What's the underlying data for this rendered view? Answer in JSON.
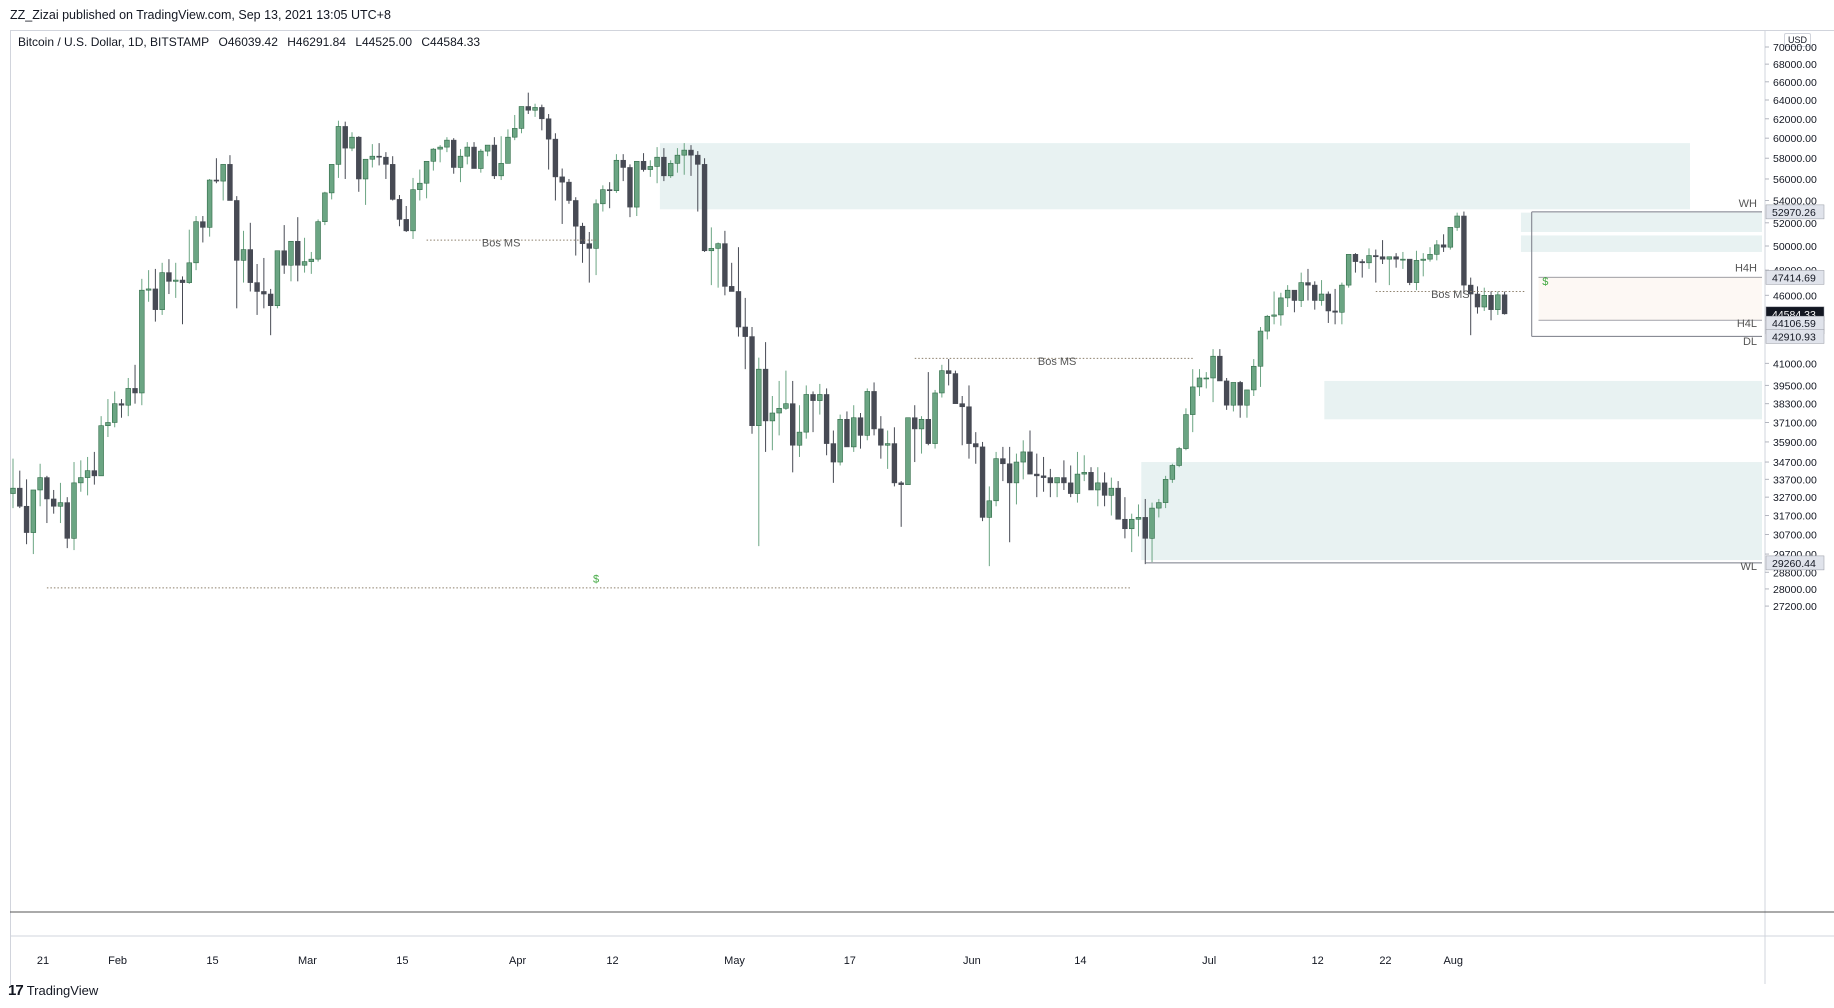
{
  "header": {
    "publisher": "ZZ_Zizai published on TradingView.com, Sep 13, 2021 13:05 UTC+8",
    "symbol": "Bitcoin / U.S. Dollar, 1D, BITSTAMP",
    "open": "O46039.42",
    "high": "H46291.84",
    "low": "L44525.00",
    "close": "C44584.33",
    "currency": "USD"
  },
  "footer": {
    "logo": "17",
    "brand": "TradingView"
  },
  "colors": {
    "up": "#6ba583",
    "down": "#474a54",
    "zone": "#e8f2f2",
    "dotted": "#8c7f6b"
  },
  "chart_data": {
    "type": "candlestick",
    "title": "",
    "y_scale": "log",
    "ylim": [
      26500,
      70500
    ],
    "x_ticks": [
      "21",
      "Feb",
      "15",
      "Mar",
      "15",
      "Apr",
      "12",
      "May",
      "17",
      "Jun",
      "14",
      "Jul",
      "12",
      "22",
      "Aug"
    ],
    "y_ticks": [
      "70000.00",
      "68000.00",
      "66000.00",
      "64000.00",
      "62000.00",
      "60000.00",
      "58000.00",
      "56000.00",
      "54000.00",
      "52000.00",
      "50000.00",
      "48000.00",
      "46000.00",
      "41000.00",
      "39500.00",
      "38300.00",
      "37100.00",
      "35900.00",
      "34700.00",
      "33700.00",
      "32700.00",
      "31700.00",
      "30700.00",
      "29700.00",
      "28800.00",
      "28000.00",
      "27200.00"
    ],
    "price_labels": [
      {
        "value": "52970.26",
        "style": "light"
      },
      {
        "value": "47414.69",
        "style": "light"
      },
      {
        "value": "44584.33",
        "style": "dark"
      },
      {
        "value": "18:54:49",
        "style": "dark"
      },
      {
        "value": "44106.59",
        "style": "light"
      },
      {
        "value": "42910.93",
        "style": "light"
      },
      {
        "value": "29260.44",
        "style": "light"
      }
    ],
    "annotations": [
      {
        "text": "Bos MS",
        "type": "label"
      },
      {
        "text": "Bos MS",
        "type": "label"
      },
      {
        "text": "Bos MS",
        "type": "label"
      },
      {
        "text": "$",
        "type": "liquidity"
      },
      {
        "text": "$",
        "type": "liquidity"
      },
      {
        "text": "WH",
        "type": "level"
      },
      {
        "text": "H4H",
        "type": "level"
      },
      {
        "text": "H4L",
        "type": "level"
      },
      {
        "text": "DL",
        "type": "level"
      },
      {
        "text": "WL",
        "type": "level"
      }
    ],
    "zones": [
      {
        "from": "2021-05-03",
        "to": "2021-09-13",
        "low": 53200,
        "high": 59500
      },
      {
        "from": "2021-08-09",
        "to": "2021-09-13",
        "low": 37300,
        "high": 39800
      },
      {
        "from": "2021-07-13",
        "to": "2021-09-13",
        "low": 29400,
        "high": 34700
      },
      {
        "from": "2021-09-07",
        "to": "2021-09-13",
        "low": 51200,
        "high": 52900
      },
      {
        "from": "2021-09-07",
        "to": "2021-09-13",
        "low": 49500,
        "high": 50900
      }
    ],
    "candles_ohlc": [
      [
        32900,
        34900,
        32100,
        33200
      ],
      [
        33200,
        34200,
        32100,
        32200
      ],
      [
        32200,
        33700,
        30200,
        30800
      ],
      [
        30800,
        33100,
        29700,
        33100
      ],
      [
        33100,
        34600,
        32200,
        33800
      ],
      [
        33800,
        33900,
        31300,
        32600
      ],
      [
        32600,
        33100,
        31800,
        32200
      ],
      [
        32200,
        33500,
        31300,
        32400
      ],
      [
        32400,
        32700,
        30000,
        30500
      ],
      [
        30500,
        34700,
        29900,
        33500
      ],
      [
        33500,
        34800,
        33000,
        33800
      ],
      [
        33800,
        35000,
        32800,
        34200
      ],
      [
        34200,
        35300,
        33400,
        33900
      ],
      [
        33900,
        37500,
        33900,
        36900
      ],
      [
        36900,
        38600,
        36200,
        37100
      ],
      [
        37100,
        39100,
        36800,
        38300
      ],
      [
        38300,
        38600,
        37400,
        38200
      ],
      [
        38200,
        40000,
        37500,
        39300
      ],
      [
        39300,
        40900,
        38300,
        39000
      ],
      [
        39000,
        47300,
        38200,
        46400
      ],
      [
        46400,
        48000,
        45500,
        46500
      ],
      [
        46500,
        48100,
        44000,
        44900
      ],
      [
        44900,
        48600,
        44500,
        47800
      ],
      [
        47800,
        48900,
        46100,
        47100
      ],
      [
        47100,
        48600,
        45800,
        47200
      ],
      [
        47200,
        47500,
        43800,
        47000
      ],
      [
        47000,
        51400,
        46900,
        48600
      ],
      [
        48600,
        52600,
        48000,
        52100
      ],
      [
        52100,
        52600,
        50300,
        51600
      ],
      [
        51600,
        56000,
        50800,
        55900
      ],
      [
        55900,
        58000,
        55600,
        55800
      ],
      [
        55800,
        57400,
        54000,
        57400
      ],
      [
        57400,
        58300,
        54000,
        54000
      ],
      [
        54000,
        54400,
        45000,
        48800
      ],
      [
        48800,
        51300,
        47000,
        49700
      ],
      [
        49700,
        52000,
        46300,
        47000
      ],
      [
        47000,
        48500,
        44500,
        46300
      ],
      [
        46300,
        49000,
        45000,
        46100
      ],
      [
        46100,
        46500,
        43000,
        45200
      ],
      [
        45200,
        49500,
        45000,
        49600
      ],
      [
        49600,
        51800,
        47700,
        48400
      ],
      [
        48400,
        50300,
        47100,
        50400
      ],
      [
        50400,
        52500,
        47100,
        48400
      ],
      [
        48400,
        50700,
        47800,
        48700
      ],
      [
        48700,
        49500,
        47700,
        48900
      ],
      [
        48900,
        52300,
        48700,
        52100
      ],
      [
        52100,
        54800,
        51800,
        54700
      ],
      [
        54700,
        57300,
        54100,
        57400
      ],
      [
        57400,
        61800,
        56100,
        61200
      ],
      [
        61200,
        61700,
        56000,
        59000
      ],
      [
        59000,
        60600,
        58700,
        60100
      ],
      [
        60100,
        60200,
        54800,
        56000
      ],
      [
        56000,
        57300,
        53600,
        57900
      ],
      [
        57900,
        59400,
        57100,
        58200
      ],
      [
        58200,
        59500,
        57300,
        58100
      ],
      [
        58100,
        58600,
        56000,
        57400
      ],
      [
        57400,
        58200,
        54000,
        54100
      ],
      [
        54100,
        54500,
        51700,
        52300
      ],
      [
        52300,
        53500,
        51200,
        51300
      ],
      [
        51300,
        56100,
        50600,
        55000
      ],
      [
        55000,
        56900,
        54000,
        55600
      ],
      [
        55600,
        56400,
        54200,
        57700
      ],
      [
        57700,
        59000,
        56800,
        58900
      ],
      [
        58900,
        59300,
        57600,
        59100
      ],
      [
        59100,
        60100,
        58600,
        59800
      ],
      [
        59800,
        60000,
        56500,
        57100
      ],
      [
        57100,
        58900,
        55700,
        58200
      ],
      [
        58200,
        59600,
        57400,
        59100
      ],
      [
        59100,
        59600,
        57200,
        57000
      ],
      [
        57000,
        58900,
        56600,
        58700
      ],
      [
        58700,
        59200,
        58200,
        59300
      ],
      [
        59300,
        60100,
        56000,
        56300
      ],
      [
        56300,
        60200,
        55900,
        57500
      ],
      [
        57500,
        60900,
        57500,
        60100
      ],
      [
        60100,
        62400,
        59800,
        61000
      ],
      [
        61000,
        63300,
        60500,
        63300
      ],
      [
        63300,
        64800,
        62500,
        62900
      ],
      [
        62900,
        63600,
        62200,
        63200
      ],
      [
        63200,
        63500,
        60800,
        62000
      ],
      [
        62000,
        62500,
        56900,
        59900
      ],
      [
        59900,
        60500,
        54000,
        56200
      ],
      [
        56200,
        57000,
        51900,
        55700
      ],
      [
        55700,
        56000,
        53700,
        54000
      ],
      [
        54000,
        54300,
        49200,
        51700
      ],
      [
        51700,
        52000,
        48600,
        50200
      ],
      [
        50200,
        51200,
        47000,
        49800
      ],
      [
        49800,
        54100,
        47600,
        53700
      ],
      [
        53700,
        55400,
        53000,
        55000
      ],
      [
        55000,
        55700,
        53300,
        54900
      ],
      [
        54900,
        58400,
        54700,
        57800
      ],
      [
        57800,
        58400,
        55800,
        57100
      ],
      [
        57100,
        57400,
        52500,
        53400
      ],
      [
        53400,
        57300,
        52600,
        57700
      ],
      [
        57700,
        58500,
        56700,
        56900
      ],
      [
        56900,
        57800,
        56200,
        57200
      ],
      [
        57200,
        59100,
        55600,
        58100
      ],
      [
        58100,
        59000,
        55800,
        56300
      ],
      [
        56300,
        57800,
        56100,
        57500
      ],
      [
        57500,
        59000,
        56600,
        58300
      ],
      [
        58300,
        59500,
        56400,
        58800
      ],
      [
        58800,
        59300,
        56300,
        58300
      ],
      [
        58300,
        58700,
        53000,
        57400
      ],
      [
        57400,
        58000,
        49500,
        49600
      ],
      [
        49600,
        51600,
        46800,
        49800
      ],
      [
        49800,
        50300,
        46600,
        50200
      ],
      [
        50200,
        51300,
        46000,
        46700
      ],
      [
        46700,
        48600,
        46600,
        46300
      ],
      [
        46300,
        49900,
        42900,
        43600
      ],
      [
        43600,
        45800,
        40600,
        42900
      ],
      [
        42900,
        43600,
        36400,
        36900
      ],
      [
        36900,
        41400,
        30100,
        40600
      ],
      [
        40600,
        42500,
        35300,
        37200
      ],
      [
        37200,
        38800,
        35400,
        37700
      ],
      [
        37700,
        39800,
        36300,
        38000
      ],
      [
        38000,
        40500,
        37900,
        38300
      ],
      [
        38300,
        39800,
        34100,
        35700
      ],
      [
        35700,
        38200,
        35000,
        36500
      ],
      [
        36500,
        39500,
        36100,
        38900
      ],
      [
        38900,
        39100,
        36500,
        38500
      ],
      [
        38500,
        39600,
        37600,
        38900
      ],
      [
        38900,
        39300,
        35100,
        35800
      ],
      [
        35800,
        36600,
        33500,
        34700
      ],
      [
        34700,
        37600,
        34500,
        37300
      ],
      [
        37300,
        37800,
        35700,
        35600
      ],
      [
        35600,
        38200,
        35300,
        37400
      ],
      [
        37400,
        37700,
        35500,
        36300
      ],
      [
        36300,
        39300,
        36000,
        39100
      ],
      [
        39100,
        39700,
        36300,
        36700
      ],
      [
        36700,
        37500,
        34900,
        35700
      ],
      [
        35700,
        36600,
        34300,
        35800
      ],
      [
        35800,
        36800,
        33300,
        33500
      ],
      [
        33500,
        33600,
        31100,
        33400
      ],
      [
        33400,
        37400,
        33400,
        37400
      ],
      [
        37400,
        38200,
        34700,
        36700
      ],
      [
        36700,
        37500,
        35200,
        37300
      ],
      [
        37300,
        40400,
        35700,
        35800
      ],
      [
        35800,
        39200,
        35500,
        39000
      ],
      [
        39000,
        40900,
        38700,
        40500
      ],
      [
        40500,
        41300,
        39500,
        40300
      ],
      [
        40300,
        40500,
        38300,
        38300
      ],
      [
        38300,
        38800,
        35700,
        38100
      ],
      [
        38100,
        39500,
        34900,
        35800
      ],
      [
        35800,
        36500,
        34600,
        35600
      ],
      [
        35600,
        35900,
        31400,
        31600
      ],
      [
        31600,
        33300,
        29100,
        32500
      ],
      [
        32500,
        35300,
        32200,
        34900
      ],
      [
        34900,
        35600,
        33600,
        34600
      ],
      [
        34600,
        35600,
        30300,
        33500
      ],
      [
        33500,
        35200,
        32300,
        34700
      ],
      [
        34700,
        36000,
        33700,
        35300
      ],
      [
        35300,
        36600,
        34100,
        34000
      ],
      [
        34000,
        35200,
        32700,
        33900
      ],
      [
        33900,
        35000,
        33000,
        33800
      ],
      [
        33800,
        34300,
        32700,
        33500
      ],
      [
        33500,
        33800,
        32700,
        33800
      ],
      [
        33800,
        34800,
        33100,
        33500
      ],
      [
        33500,
        34500,
        32700,
        32900
      ],
      [
        32900,
        35300,
        32400,
        34000
      ],
      [
        34000,
        35100,
        33600,
        34100
      ],
      [
        34100,
        34400,
        33100,
        33100
      ],
      [
        33100,
        34400,
        32200,
        33500
      ],
      [
        33500,
        34100,
        32200,
        32800
      ],
      [
        32800,
        33800,
        31700,
        33200
      ],
      [
        33200,
        33600,
        31700,
        31500
      ],
      [
        31500,
        32700,
        30500,
        31000
      ],
      [
        31000,
        31800,
        29800,
        31500
      ],
      [
        31500,
        32300,
        30600,
        31600
      ],
      [
        31600,
        32600,
        29200,
        30500
      ],
      [
        30500,
        32400,
        29300,
        32100
      ],
      [
        32100,
        32600,
        31600,
        32400
      ],
      [
        32400,
        33900,
        32100,
        33700
      ],
      [
        33700,
        34600,
        33500,
        34500
      ],
      [
        34500,
        35600,
        34400,
        35500
      ],
      [
        35500,
        38000,
        35400,
        37600
      ],
      [
        37600,
        40600,
        36500,
        39400
      ],
      [
        39400,
        40600,
        38800,
        40000
      ],
      [
        40000,
        40400,
        39300,
        40000
      ],
      [
        40000,
        42000,
        38400,
        41500
      ],
      [
        41500,
        42000,
        39800,
        39800
      ],
      [
        39800,
        40000,
        37900,
        38200
      ],
      [
        38200,
        39400,
        37800,
        39700
      ],
      [
        39700,
        39800,
        37400,
        38200
      ],
      [
        38200,
        39200,
        37400,
        39200
      ],
      [
        39200,
        41300,
        38800,
        40800
      ],
      [
        40800,
        43600,
        39400,
        43300
      ],
      [
        43300,
        44500,
        42700,
        44400
      ],
      [
        44400,
        46300,
        43800,
        44500
      ],
      [
        44500,
        46200,
        43700,
        45800
      ],
      [
        45800,
        46800,
        45100,
        46400
      ],
      [
        46400,
        46400,
        44700,
        45600
      ],
      [
        45600,
        47800,
        45100,
        47000
      ],
      [
        47000,
        48100,
        45600,
        46800
      ],
      [
        46800,
        47100,
        44900,
        45600
      ],
      [
        45600,
        47200,
        45200,
        46100
      ],
      [
        46100,
        46300,
        43900,
        44800
      ],
      [
        44800,
        46500,
        43800,
        44700
      ],
      [
        44700,
        47000,
        43800,
        46800
      ],
      [
        46800,
        49200,
        46600,
        49300
      ],
      [
        49300,
        49400,
        47800,
        48700
      ],
      [
        48700,
        48900,
        47400,
        48600
      ],
      [
        48600,
        49800,
        48100,
        49200
      ],
      [
        49200,
        49700,
        47000,
        49100
      ],
      [
        49100,
        50500,
        48500,
        48900
      ],
      [
        48900,
        49000,
        46800,
        49100
      ],
      [
        49100,
        49400,
        48200,
        48900
      ],
      [
        48900,
        49500,
        48100,
        48900
      ],
      [
        48900,
        48800,
        46800,
        47000
      ],
      [
        47000,
        49600,
        46400,
        48800
      ],
      [
        48800,
        49400,
        47500,
        48900
      ],
      [
        48900,
        49900,
        48700,
        49300
      ],
      [
        49300,
        50500,
        48800,
        50100
      ],
      [
        50100,
        51000,
        49500,
        49900
      ],
      [
        49900,
        51300,
        49700,
        51600
      ],
      [
        51600,
        52900,
        51300,
        52600
      ],
      [
        52600,
        53000,
        46200,
        46800
      ],
      [
        46800,
        47400,
        43000,
        46100
      ],
      [
        46100,
        46700,
        44600,
        45100
      ],
      [
        45100,
        46600,
        44800,
        46000
      ],
      [
        46000,
        46300,
        44100,
        44900
      ],
      [
        44900,
        46300,
        44500,
        46039
      ],
      [
        46039,
        46292,
        44525,
        44584
      ]
    ]
  }
}
